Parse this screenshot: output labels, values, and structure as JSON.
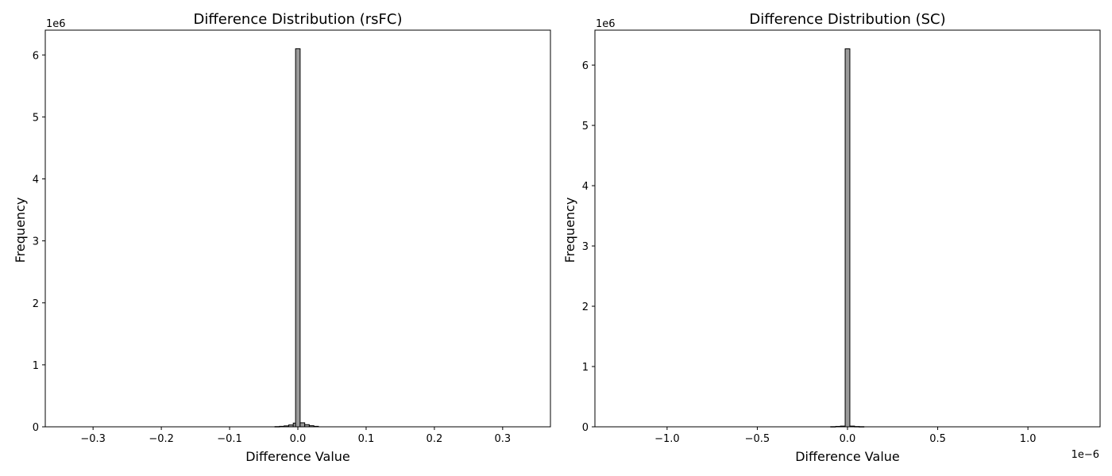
{
  "chart_data": [
    {
      "type": "bar",
      "title": "Difference Distribution (rsFC)",
      "xlabel": "Difference Value",
      "ylabel": "Frequency",
      "y_scale_label": "1e6",
      "x_scale_label": "",
      "xlim": [
        -0.37,
        0.37
      ],
      "ylim": [
        0,
        6.4
      ],
      "x_ticks": [
        -0.3,
        -0.2,
        -0.1,
        0.0,
        0.1,
        0.2,
        0.3
      ],
      "x_tick_labels": [
        "−0.3",
        "−0.2",
        "−0.1",
        "0.0",
        "0.1",
        "0.2",
        "0.3"
      ],
      "y_ticks": [
        0,
        1,
        2,
        3,
        4,
        5,
        6
      ],
      "y_tick_labels": [
        "0",
        "1",
        "2",
        "3",
        "4",
        "5",
        "6"
      ],
      "grid": false,
      "bin_width": 0.0067,
      "bins": [
        {
          "x": -0.0302,
          "value": 0.004
        },
        {
          "x": -0.0235,
          "value": 0.008
        },
        {
          "x": -0.0168,
          "value": 0.015
        },
        {
          "x": -0.0101,
          "value": 0.03
        },
        {
          "x": -0.0034,
          "value": 0.06
        },
        {
          "x": 0.0,
          "value": 6.1
        },
        {
          "x": 0.0067,
          "value": 0.065
        },
        {
          "x": 0.0134,
          "value": 0.035
        },
        {
          "x": 0.0201,
          "value": 0.018
        },
        {
          "x": 0.0268,
          "value": 0.008
        }
      ]
    },
    {
      "type": "bar",
      "title": "Difference Distribution (SC)",
      "xlabel": "Difference Value",
      "ylabel": "Frequency",
      "y_scale_label": "1e6",
      "x_scale_label": "1e−6",
      "xlim": [
        -1.4,
        1.4
      ],
      "ylim": [
        0,
        6.58
      ],
      "x_ticks": [
        -1.0,
        -0.5,
        0.0,
        0.5,
        1.0
      ],
      "x_tick_labels": [
        "−1.0",
        "−0.5",
        "0.0",
        "0.5",
        "1.0"
      ],
      "y_ticks": [
        0,
        1,
        2,
        3,
        4,
        5,
        6
      ],
      "y_tick_labels": [
        "0",
        "1",
        "2",
        "3",
        "4",
        "5",
        "6"
      ],
      "grid": false,
      "bin_width": 0.026,
      "bins": [
        {
          "x": -0.08,
          "value": 0.003
        },
        {
          "x": -0.052,
          "value": 0.007
        },
        {
          "x": -0.026,
          "value": 0.012
        },
        {
          "x": 0.0,
          "value": 6.27
        },
        {
          "x": 0.026,
          "value": 0.012
        },
        {
          "x": 0.052,
          "value": 0.005
        },
        {
          "x": 0.078,
          "value": 0.003
        }
      ]
    }
  ]
}
